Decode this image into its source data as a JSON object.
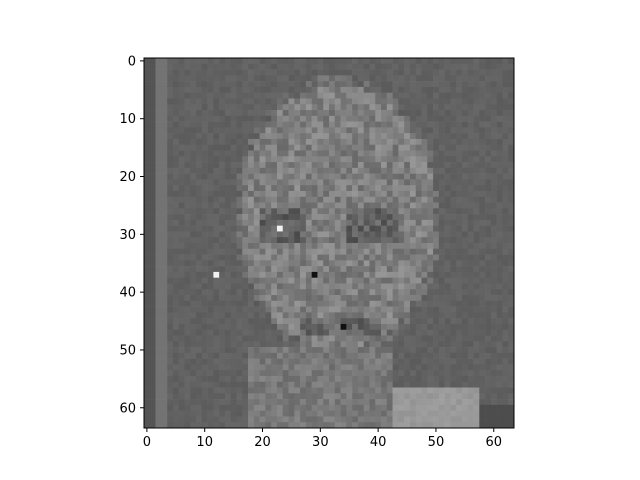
{
  "chart_data": {
    "type": "heatmap",
    "colormap": "gray",
    "image_size": [
      64,
      64
    ],
    "xlim": [
      -0.5,
      63.5
    ],
    "ylim": [
      63.5,
      -0.5
    ],
    "x_ticks": [
      0,
      10,
      20,
      30,
      40,
      50,
      60
    ],
    "y_ticks": [
      0,
      10,
      20,
      30,
      40,
      50,
      60
    ],
    "x_tick_labels": [
      "0",
      "10",
      "20",
      "30",
      "40",
      "50",
      "60"
    ],
    "y_tick_labels": [
      "0",
      "10",
      "20",
      "30",
      "40",
      "50",
      "60"
    ],
    "title": "",
    "xlabel": "",
    "ylabel": "",
    "description_values": {
      "background_level": 0.38,
      "face_level": 0.5,
      "bright_spots": [
        [
          23,
          29
        ],
        [
          12,
          37
        ]
      ],
      "dark_spots": [
        [
          34,
          46
        ],
        [
          29,
          37
        ]
      ]
    }
  }
}
